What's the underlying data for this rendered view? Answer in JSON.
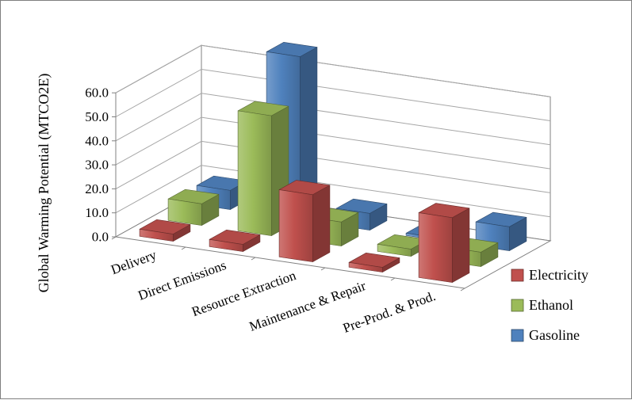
{
  "chart_data": {
    "type": "bar",
    "projection": "3d",
    "title": "",
    "ylabel": "Global Warming Potential (MTCO2E)",
    "xlabel": "",
    "categories": [
      "Delivery",
      "Direct Emissions",
      "Resource Extraction",
      "Maintenance & Repair",
      "Pre-Prod. & Prod."
    ],
    "series": [
      {
        "name": "Electricity",
        "color": "#C0504D",
        "values": [
          3,
          3,
          28,
          2,
          27
        ]
      },
      {
        "name": "Ethanol",
        "color": "#9BBB59",
        "values": [
          9,
          50,
          10,
          3,
          6
        ]
      },
      {
        "name": "Gasoline",
        "color": "#4F81BD",
        "values": [
          8,
          68,
          7,
          1,
          10
        ]
      }
    ],
    "ylim": [
      0,
      60
    ],
    "ytick_step": 10,
    "ytick_labels": [
      "0.0",
      "10.0",
      "20.0",
      "30.0",
      "40.0",
      "50.0",
      "60.0"
    ],
    "grid": true,
    "legend_position": "right"
  }
}
